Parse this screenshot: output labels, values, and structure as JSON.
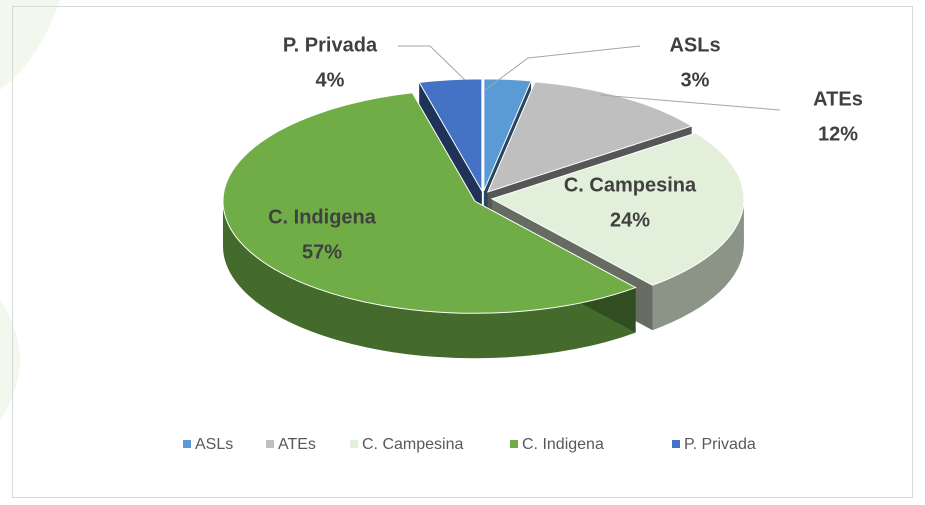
{
  "chart_data": {
    "type": "pie3d",
    "categories": [
      "ASLs",
      "ATEs",
      "C. Campesina",
      "C. Indigena",
      "P. Privada"
    ],
    "values": [
      3,
      12,
      24,
      57,
      4
    ],
    "value_labels": [
      "3%",
      "12%",
      "24%",
      "57%",
      "4%"
    ],
    "colors": [
      "#5b9bd5",
      "#bfbfbf",
      "#e2efda",
      "#70ad47",
      "#4472c4"
    ],
    "legend": "bottom"
  }
}
